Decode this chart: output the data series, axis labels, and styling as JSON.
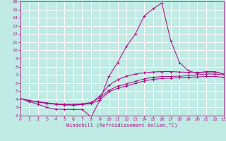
{
  "xlabel": "Windchill (Refroidissement éolien,°C)",
  "xlim": [
    0,
    23
  ],
  "ylim": [
    2,
    16
  ],
  "xticks": [
    0,
    1,
    2,
    3,
    4,
    5,
    6,
    7,
    8,
    9,
    10,
    11,
    12,
    13,
    14,
    15,
    16,
    17,
    18,
    19,
    20,
    21,
    22,
    23
  ],
  "yticks": [
    2,
    3,
    4,
    5,
    6,
    7,
    8,
    9,
    10,
    11,
    12,
    13,
    14,
    15,
    16
  ],
  "bg_color": "#c0eae4",
  "line_color": "#aa1188",
  "grid_color": "#ffffff",
  "line1_x": [
    0,
    1,
    2,
    3,
    4,
    5,
    6,
    7,
    8,
    9,
    10,
    11,
    12,
    13,
    14,
    15,
    16,
    17,
    18,
    19,
    20,
    21,
    22,
    23
  ],
  "line1_y": [
    4.1,
    3.7,
    3.4,
    3.0,
    2.8,
    2.75,
    2.75,
    2.75,
    1.85,
    3.9,
    6.8,
    8.5,
    10.5,
    12.0,
    14.2,
    15.1,
    15.8,
    11.2,
    8.5,
    7.5,
    7.2,
    7.4,
    7.4,
    7.1
  ],
  "line2_x": [
    0,
    1,
    2,
    3,
    4,
    5,
    6,
    7,
    8,
    9,
    10,
    11,
    12,
    13,
    14,
    15,
    16,
    17,
    18,
    19,
    20,
    21,
    22,
    23
  ],
  "line2_y": [
    4.1,
    3.85,
    3.7,
    3.55,
    3.45,
    3.4,
    3.4,
    3.45,
    3.6,
    4.2,
    5.1,
    5.6,
    5.9,
    6.2,
    6.5,
    6.7,
    6.8,
    6.8,
    6.85,
    6.9,
    7.0,
    7.1,
    7.1,
    7.0
  ],
  "line3_x": [
    0,
    1,
    2,
    3,
    4,
    5,
    6,
    7,
    8,
    9,
    10,
    11,
    12,
    13,
    14,
    15,
    16,
    17,
    18,
    19,
    20,
    21,
    22,
    23
  ],
  "line3_y": [
    4.1,
    3.85,
    3.7,
    3.55,
    3.4,
    3.35,
    3.3,
    3.35,
    3.5,
    3.9,
    4.9,
    5.35,
    5.65,
    5.95,
    6.25,
    6.45,
    6.55,
    6.6,
    6.65,
    6.7,
    6.75,
    6.8,
    6.8,
    6.7
  ],
  "line4_x": [
    0,
    1,
    2,
    3,
    4,
    5,
    6,
    7,
    8,
    9,
    10,
    11,
    12,
    13,
    14,
    15,
    16,
    17,
    18,
    19,
    20,
    21,
    22,
    23
  ],
  "line4_y": [
    4.1,
    3.85,
    3.65,
    3.5,
    3.4,
    3.3,
    3.3,
    3.35,
    3.55,
    4.4,
    5.7,
    6.4,
    6.85,
    7.1,
    7.25,
    7.35,
    7.4,
    7.4,
    7.35,
    7.3,
    7.3,
    7.35,
    7.35,
    7.1
  ]
}
